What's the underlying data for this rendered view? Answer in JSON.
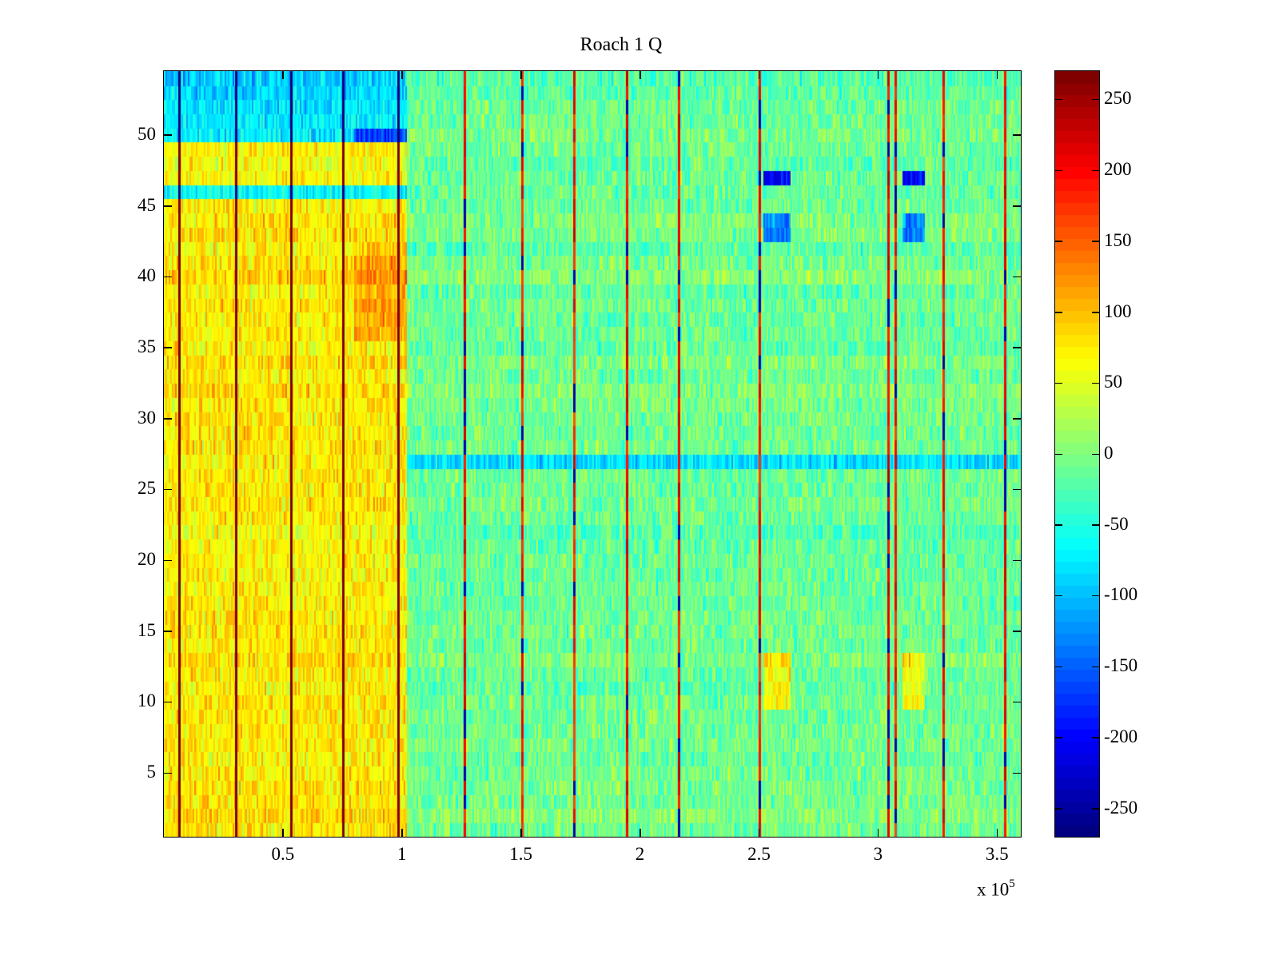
{
  "chart_data": {
    "type": "heatmap",
    "title": "Roach 1 Q",
    "xlabel": "",
    "ylabel": "",
    "x_multiplier_label": "x 10",
    "x_multiplier_exponent": "5",
    "xlim": [
      0,
      3.6
    ],
    "ylim": [
      0.5,
      54.5
    ],
    "rows": 54,
    "xticks": [
      0.5,
      1,
      1.5,
      2,
      2.5,
      3,
      3.5
    ],
    "xtick_labels": [
      "0.5",
      "1",
      "1.5",
      "2",
      "2.5",
      "3",
      "3.5"
    ],
    "yticks": [
      5,
      10,
      15,
      20,
      25,
      30,
      35,
      40,
      45,
      50
    ],
    "ytick_labels": [
      "5",
      "10",
      "15",
      "20",
      "25",
      "30",
      "35",
      "40",
      "45",
      "50"
    ],
    "colorbar": {
      "colormap": "jet",
      "clim": [
        -270,
        270
      ],
      "ticks": [
        250,
        200,
        150,
        100,
        50,
        0,
        -50,
        -100,
        -150,
        -200,
        -250
      ],
      "tick_labels": [
        "250",
        "200",
        "150",
        "100",
        "50",
        "0",
        "-50",
        "-100",
        "-150",
        "-200",
        "-250"
      ]
    },
    "regions": [
      {
        "x_range": [
          0,
          1.02
        ],
        "rows": [
          50,
          54
        ],
        "approx_value": -80,
        "note": "blue band top-left"
      },
      {
        "x_range": [
          0.8,
          1.02
        ],
        "rows": [
          50,
          50
        ],
        "approx_value": -170
      },
      {
        "x_range": [
          0,
          1.02
        ],
        "rows": [
          46,
          46
        ],
        "approx_value": -60
      },
      {
        "x_range": [
          0,
          1.02
        ],
        "rows": [
          1,
          45
        ],
        "approx_value": 75,
        "note": "warm yellow/orange block"
      },
      {
        "x_range": [
          0,
          1.02
        ],
        "rows": [
          47,
          49
        ],
        "approx_value": 70
      },
      {
        "x_range": [
          0.8,
          1.02
        ],
        "rows": [
          36,
          42
        ],
        "approx_value": 110
      },
      {
        "x_range": [
          1.02,
          3.6
        ],
        "rows": [
          1,
          54
        ],
        "approx_value": -10,
        "note": "background green/cyan"
      },
      {
        "x_range": [
          1.02,
          3.6
        ],
        "rows": [
          27,
          27
        ],
        "approx_value": -80
      },
      {
        "x_range": [
          2.52,
          2.63
        ],
        "rows": [
          47,
          47
        ],
        "approx_value": -200
      },
      {
        "x_range": [
          3.1,
          3.2
        ],
        "rows": [
          47,
          47
        ],
        "approx_value": -200
      },
      {
        "x_range": [
          2.52,
          2.63
        ],
        "rows": [
          43,
          44
        ],
        "approx_value": -140
      },
      {
        "x_range": [
          3.1,
          3.2
        ],
        "rows": [
          43,
          44
        ],
        "approx_value": -140
      },
      {
        "x_range": [
          2.52,
          2.63
        ],
        "rows": [
          10,
          13
        ],
        "approx_value": 70
      },
      {
        "x_range": [
          3.1,
          3.2
        ],
        "rows": [
          10,
          13
        ],
        "approx_value": 65
      }
    ],
    "vertical_lines": [
      {
        "x": 0.06,
        "value": 270
      },
      {
        "x": 0.3,
        "value": 270
      },
      {
        "x": 0.53,
        "value": 270
      },
      {
        "x": 0.75,
        "value": 270
      },
      {
        "x": 0.98,
        "value": 270
      },
      {
        "x": 1.26,
        "value": 230
      },
      {
        "x": 1.5,
        "value": 220
      },
      {
        "x": 1.72,
        "value": 220
      },
      {
        "x": 1.94,
        "value": 230
      },
      {
        "x": 2.16,
        "value": 230
      },
      {
        "x": 2.5,
        "value": 220
      },
      {
        "x": 3.04,
        "value": 240
      },
      {
        "x": 3.07,
        "value": 220
      },
      {
        "x": 3.27,
        "value": 220
      },
      {
        "x": 3.53,
        "value": 230
      }
    ]
  }
}
